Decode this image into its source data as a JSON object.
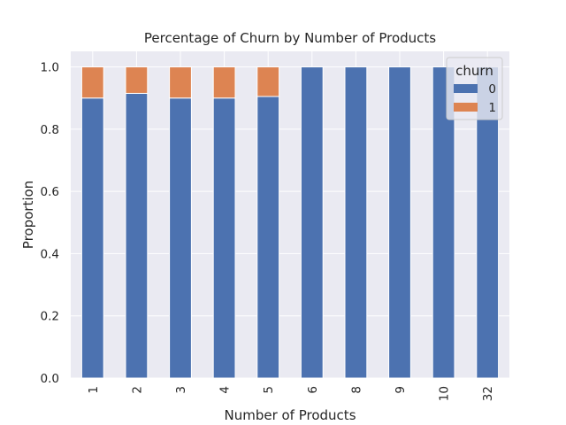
{
  "chart_data": {
    "type": "bar",
    "stacked": true,
    "title": "Percentage of Churn by Number of Products",
    "xlabel": "Number of Products",
    "ylabel": "Proportion",
    "categories": [
      "1",
      "2",
      "3",
      "4",
      "5",
      "6",
      "8",
      "9",
      "10",
      "32"
    ],
    "series": [
      {
        "name": "0",
        "color": "#4c72b0",
        "values": [
          0.9,
          0.915,
          0.9,
          0.9,
          0.905,
          1.0,
          1.0,
          1.0,
          1.0,
          1.0
        ]
      },
      {
        "name": "1",
        "color": "#dd8452",
        "values": [
          0.1,
          0.085,
          0.1,
          0.1,
          0.095,
          0.0,
          0.0,
          0.0,
          0.0,
          0.0
        ]
      }
    ],
    "ylim": [
      0,
      1.05
    ],
    "yticks": [
      "0.0",
      "0.2",
      "0.4",
      "0.6",
      "0.8",
      "1.0"
    ],
    "grid": true,
    "legend": {
      "title": "churn",
      "placement": "top-right"
    },
    "background": "#eaeaf2"
  }
}
